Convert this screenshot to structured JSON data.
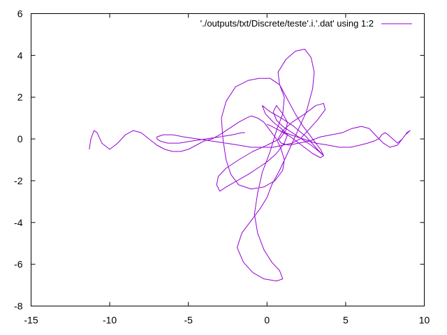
{
  "chart_data": {
    "type": "line",
    "title": "",
    "xlabel": "",
    "ylabel": "",
    "xlim": [
      -15,
      10
    ],
    "ylim": [
      -8,
      6
    ],
    "xticks": [
      -15,
      -10,
      -5,
      0,
      5,
      10
    ],
    "yticks": [
      -8,
      -6,
      -4,
      -2,
      0,
      2,
      4,
      6
    ],
    "xtick_labels": [
      "-15",
      "-10",
      "-5",
      "0",
      "5",
      "10"
    ],
    "ytick_labels": [
      "-8",
      "-6",
      "-4",
      "-2",
      "0",
      "2",
      "4",
      "6"
    ],
    "grid": false,
    "legend_position": "top-right",
    "series": [
      {
        "name": "'./outputs/txt/Discrete/teste'.i.'.dat' using 1:2",
        "color": "#9400d3",
        "x": [
          -11.3,
          -11.2,
          -11.0,
          -10.8,
          -10.5,
          -10.0,
          -9.5,
          -9.0,
          -8.5,
          -8.0,
          -7.5,
          -7.0,
          -6.5,
          -6.0,
          -5.5,
          -5.0,
          -4.5,
          -4.0,
          -3.5,
          -3.0,
          -2.6,
          -2.2,
          -1.8,
          -1.3,
          -1.0,
          -0.6,
          -0.2,
          0.2,
          0.6,
          0.9,
          1.1,
          1.0,
          0.5,
          -0.2,
          -1.0,
          -1.8,
          -2.3,
          -2.6,
          -2.8,
          -2.9,
          -2.6,
          -2.0,
          -1.2,
          -0.5,
          0.2,
          0.8,
          1.1,
          1.0,
          0.6,
          0.2,
          -0.3,
          -0.6,
          -0.8,
          -0.6,
          -0.2,
          0.3,
          0.8,
          1.0,
          0.6,
          -0.2,
          -0.9,
          -1.5,
          -1.9,
          -1.6,
          -1.0,
          -0.4,
          0.0,
          0.3,
          0.8,
          1.3,
          1.9,
          2.5,
          2.9,
          3.0,
          2.8,
          2.4,
          1.8,
          1.2,
          0.7,
          0.8,
          1.3,
          1.8,
          2.3,
          2.9,
          3.4,
          3.6,
          3.2,
          2.5,
          1.7,
          0.9,
          0.2,
          -0.3,
          -0.1,
          0.4,
          0.9,
          1.3,
          1.1,
          0.6,
          0.0,
          -0.6,
          -1.2,
          -1.9,
          -2.6,
          -3.0,
          -3.2,
          -3.1,
          -2.6,
          -1.8,
          -0.9,
          0.0,
          0.8,
          1.2,
          1.3,
          1.0,
          0.6,
          0.4,
          0.6,
          1.0,
          1.6,
          2.2,
          2.8,
          3.3,
          3.6,
          3.4,
          2.9,
          2.2,
          1.5,
          0.8,
          0.3,
          0.0,
          0.3,
          0.8,
          1.5,
          2.3,
          3.1,
          3.9,
          4.6,
          5.3,
          5.9,
          6.4,
          6.8,
          7.1,
          7.3,
          7.5,
          7.7,
          8.0,
          8.3,
          8.6,
          8.9,
          9.1,
          8.8,
          8.3,
          7.8,
          7.4,
          7.0,
          6.5,
          6.0,
          5.4,
          4.8,
          4.1,
          3.4,
          2.7,
          2.0,
          1.4,
          0.9,
          0.7,
          1.0,
          1.6,
          2.4,
          3.1,
          3.6,
          3.7,
          3.2,
          2.6,
          2.1,
          1.6,
          1.0,
          0.4,
          -0.3,
          -1.0,
          -1.8,
          -2.6,
          -3.5,
          -4.4,
          -5.3,
          -6.0,
          -6.6,
          -7.0,
          -7.0,
          -6.8,
          -6.3,
          -5.6,
          -4.8,
          -3.9,
          -3.0,
          -2.2,
          -1.6,
          -1.4
        ],
        "y": [
          -0.5,
          0.0,
          0.4,
          0.3,
          -0.2,
          -0.5,
          -0.2,
          0.2,
          0.4,
          0.3,
          0.0,
          -0.3,
          -0.5,
          -0.6,
          -0.6,
          -0.5,
          -0.3,
          -0.1,
          0.0,
          0.2,
          0.4,
          0.6,
          0.8,
          1.0,
          1.1,
          1.0,
          0.8,
          0.4,
          0.0,
          -0.5,
          -1.0,
          -1.5,
          -2.0,
          -2.3,
          -2.4,
          -2.2,
          -1.7,
          -1.0,
          0.0,
          1.0,
          1.8,
          2.5,
          2.8,
          2.9,
          2.9,
          2.6,
          2.0,
          1.2,
          0.4,
          -0.6,
          -1.6,
          -2.6,
          -3.6,
          -4.5,
          -5.3,
          -5.9,
          -6.3,
          -6.7,
          -6.8,
          -6.7,
          -6.4,
          -5.9,
          -5.2,
          -4.5,
          -3.9,
          -3.3,
          -2.8,
          -2.2,
          -1.5,
          -0.7,
          0.3,
          1.3,
          2.4,
          3.2,
          3.9,
          4.3,
          4.2,
          3.8,
          3.2,
          2.6,
          1.9,
          1.2,
          0.6,
          0.0,
          -0.5,
          -0.8,
          -0.5,
          0.1,
          0.6,
          1.0,
          1.3,
          1.6,
          1.2,
          0.8,
          0.5,
          0.2,
          -0.2,
          -0.7,
          -1.1,
          -1.4,
          -1.7,
          -2.0,
          -2.3,
          -2.5,
          -2.2,
          -1.8,
          -1.4,
          -1.0,
          -0.6,
          -0.3,
          0.0,
          0.4,
          0.8,
          1.2,
          1.6,
          1.3,
          0.9,
          0.6,
          0.3,
          0.0,
          -0.3,
          -0.6,
          -0.8,
          -0.9,
          -0.7,
          -0.3,
          0.1,
          0.4,
          0.6,
          0.7,
          0.6,
          0.4,
          0.2,
          0.0,
          -0.2,
          -0.3,
          -0.4,
          -0.4,
          -0.3,
          -0.2,
          -0.1,
          0.0,
          0.2,
          0.3,
          0.2,
          0.0,
          -0.2,
          0.0,
          0.3,
          0.4,
          0.2,
          -0.3,
          -0.4,
          -0.2,
          0.1,
          0.5,
          0.6,
          0.5,
          0.3,
          0.2,
          0.1,
          -0.1,
          -0.2,
          -0.3,
          -0.2,
          0.0,
          0.4,
          0.8,
          1.2,
          1.6,
          1.7,
          1.4,
          0.9,
          0.4,
          0.0,
          -0.2,
          -0.3,
          -0.4,
          -0.4,
          -0.4,
          -0.3,
          -0.2,
          -0.1,
          0.0,
          0.1,
          0.2,
          0.2,
          0.1,
          0.0,
          -0.1,
          -0.2,
          -0.2,
          -0.1,
          0.0,
          0.1,
          0.2,
          0.3,
          0.3
        ]
      }
    ]
  }
}
